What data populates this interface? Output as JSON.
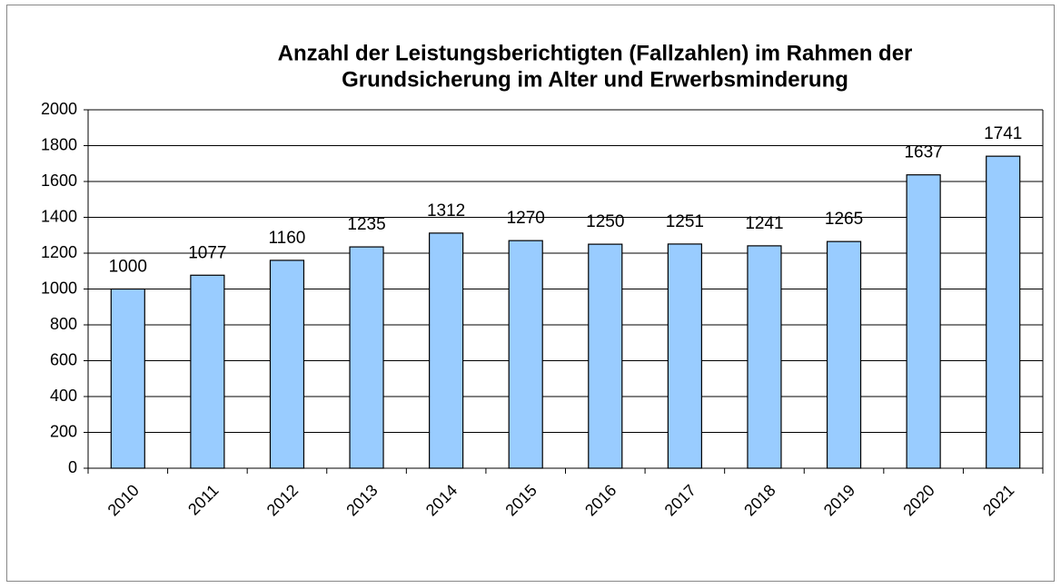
{
  "chart_data": {
    "type": "bar",
    "title": [
      "Anzahl der Leistungsberichtigten (Fallzahlen) im Rahmen der",
      "Grundsicherung im Alter und Erwerbsminderung"
    ],
    "categories": [
      "2010",
      "2011",
      "2012",
      "2013",
      "2014",
      "2015",
      "2016",
      "2017",
      "2018",
      "2019",
      "2020",
      "2021"
    ],
    "values": [
      1000,
      1077,
      1160,
      1235,
      1312,
      1270,
      1250,
      1251,
      1241,
      1265,
      1637,
      1741
    ],
    "color": "#99ccff",
    "ylim": [
      0,
      2000
    ],
    "yticks": [
      0,
      200,
      400,
      600,
      800,
      1000,
      1200,
      1400,
      1600,
      1800,
      2000
    ],
    "grid": true
  }
}
